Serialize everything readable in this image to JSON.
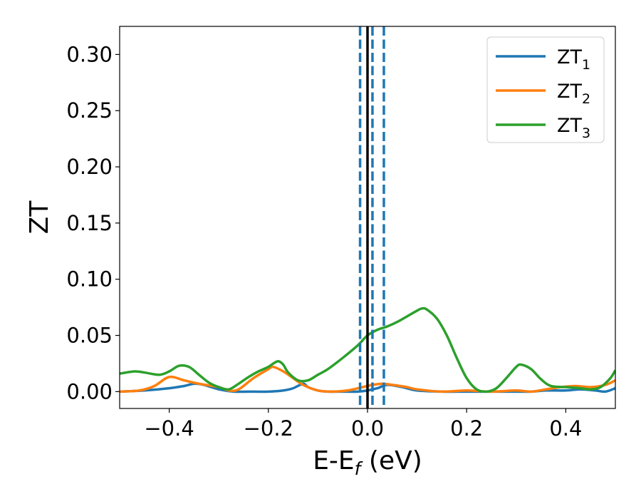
{
  "chart_data": {
    "type": "line",
    "xlabel_main": "E-E",
    "xlabel_sub": "f",
    "xlabel_tail": " (eV)",
    "ylabel": "ZT",
    "xlim": [
      -0.5,
      0.5
    ],
    "ylim": [
      -0.015,
      0.325
    ],
    "xticks": [
      -0.4,
      -0.2,
      0.0,
      0.2,
      0.4
    ],
    "xtick_labels": [
      "−0.4",
      "−0.2",
      "0.0",
      "0.2",
      "0.4"
    ],
    "yticks": [
      0.0,
      0.05,
      0.1,
      0.15,
      0.2,
      0.25,
      0.3
    ],
    "ytick_labels": [
      "0.00",
      "0.05",
      "0.10",
      "0.15",
      "0.20",
      "0.25",
      "0.30"
    ],
    "grid": false,
    "legend_position": "top-right",
    "vlines": [
      {
        "x": 0.0,
        "style": "solid",
        "color": "#000000"
      },
      {
        "x": -0.015,
        "style": "dashed",
        "color": "#1f77b4"
      },
      {
        "x": 0.01,
        "style": "dashed",
        "color": "#1f77b4"
      },
      {
        "x": 0.033,
        "style": "dashed",
        "color": "#1f77b4"
      }
    ],
    "series": [
      {
        "name": "ZT",
        "name_sub": "1",
        "color": "#1f77b4",
        "x": [
          -0.5,
          -0.45,
          -0.4,
          -0.37,
          -0.35,
          -0.33,
          -0.3,
          -0.27,
          -0.24,
          -0.2,
          -0.17,
          -0.15,
          -0.13,
          -0.12,
          -0.1,
          -0.08,
          -0.05,
          -0.02,
          0.0,
          0.02,
          0.04,
          0.07,
          0.1,
          0.15,
          0.2,
          0.25,
          0.3,
          0.33,
          0.36,
          0.4,
          0.43,
          0.46,
          0.48,
          0.5
        ],
        "y": [
          0.0,
          0.001,
          0.003,
          0.005,
          0.007,
          0.006,
          0.002,
          0.0,
          0.0,
          0.0,
          0.001,
          0.003,
          0.007,
          0.004,
          0.001,
          0.0,
          0.0,
          0.0,
          0.001,
          0.003,
          0.006,
          0.004,
          0.001,
          0.0,
          0.0,
          0.0,
          0.0,
          0.0,
          0.001,
          0.001,
          0.002,
          0.001,
          0.0,
          0.003
        ]
      },
      {
        "name": "ZT",
        "name_sub": "2",
        "color": "#ff7f0e",
        "x": [
          -0.5,
          -0.46,
          -0.43,
          -0.4,
          -0.37,
          -0.34,
          -0.3,
          -0.28,
          -0.26,
          -0.23,
          -0.2,
          -0.19,
          -0.17,
          -0.15,
          -0.13,
          -0.1,
          -0.07,
          -0.04,
          -0.01,
          0.01,
          0.03,
          0.05,
          0.08,
          0.1,
          0.15,
          0.2,
          0.25,
          0.3,
          0.33,
          0.36,
          0.39,
          0.42,
          0.45,
          0.48,
          0.5
        ],
        "y": [
          0.0,
          0.001,
          0.005,
          0.013,
          0.01,
          0.007,
          0.004,
          0.001,
          0.002,
          0.012,
          0.02,
          0.022,
          0.018,
          0.012,
          0.006,
          0.001,
          0.0,
          0.001,
          0.004,
          0.006,
          0.007,
          0.006,
          0.004,
          0.002,
          0.0,
          0.001,
          0.0,
          0.001,
          0.0,
          0.002,
          0.004,
          0.005,
          0.004,
          0.006,
          0.01
        ]
      },
      {
        "name": "ZT",
        "name_sub": "3",
        "color": "#2ca02c",
        "x": [
          -0.5,
          -0.47,
          -0.45,
          -0.42,
          -0.4,
          -0.38,
          -0.36,
          -0.34,
          -0.32,
          -0.3,
          -0.28,
          -0.26,
          -0.24,
          -0.22,
          -0.2,
          -0.19,
          -0.18,
          -0.17,
          -0.16,
          -0.14,
          -0.12,
          -0.1,
          -0.08,
          -0.05,
          -0.02,
          0.0,
          0.02,
          0.04,
          0.06,
          0.08,
          0.1,
          0.11,
          0.12,
          0.14,
          0.16,
          0.18,
          0.2,
          0.22,
          0.24,
          0.26,
          0.28,
          0.3,
          0.31,
          0.33,
          0.35,
          0.37,
          0.4,
          0.43,
          0.45,
          0.47,
          0.49,
          0.5
        ],
        "y": [
          0.016,
          0.018,
          0.017,
          0.015,
          0.018,
          0.023,
          0.022,
          0.015,
          0.008,
          0.004,
          0.002,
          0.007,
          0.013,
          0.018,
          0.022,
          0.025,
          0.027,
          0.024,
          0.017,
          0.01,
          0.01,
          0.015,
          0.02,
          0.03,
          0.041,
          0.05,
          0.055,
          0.058,
          0.062,
          0.067,
          0.072,
          0.074,
          0.073,
          0.065,
          0.05,
          0.03,
          0.012,
          0.002,
          0.0,
          0.003,
          0.012,
          0.022,
          0.024,
          0.02,
          0.011,
          0.005,
          0.004,
          0.003,
          0.002,
          0.004,
          0.012,
          0.019
        ]
      }
    ]
  }
}
